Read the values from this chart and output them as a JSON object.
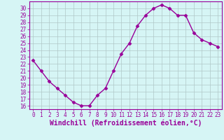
{
  "x": [
    0,
    1,
    2,
    3,
    4,
    5,
    6,
    7,
    8,
    9,
    10,
    11,
    12,
    13,
    14,
    15,
    16,
    17,
    18,
    19,
    20,
    21,
    22,
    23
  ],
  "y": [
    22.5,
    21.0,
    19.5,
    18.5,
    17.5,
    16.5,
    16.0,
    16.0,
    17.5,
    18.5,
    21.0,
    23.5,
    25.0,
    27.5,
    29.0,
    30.0,
    30.5,
    30.0,
    29.0,
    29.0,
    26.5,
    25.5,
    25.0,
    24.5
  ],
  "line_color": "#990099",
  "marker": "D",
  "marker_size": 2.5,
  "bg_color": "#d6f5f5",
  "grid_color": "#b0c8c8",
  "xlabel": "Windchill (Refroidissement éolien,°C)",
  "xlabel_color": "#990099",
  "tick_color": "#990099",
  "spine_color": "#990099",
  "xlim": [
    -0.5,
    23.5
  ],
  "ylim": [
    15.5,
    31.0
  ],
  "yticks": [
    16,
    17,
    18,
    19,
    20,
    21,
    22,
    23,
    24,
    25,
    26,
    27,
    28,
    29,
    30
  ],
  "xticks": [
    0,
    1,
    2,
    3,
    4,
    5,
    6,
    7,
    8,
    9,
    10,
    11,
    12,
    13,
    14,
    15,
    16,
    17,
    18,
    19,
    20,
    21,
    22,
    23
  ],
  "tick_fontsize": 5.5,
  "xlabel_fontsize": 7.0
}
